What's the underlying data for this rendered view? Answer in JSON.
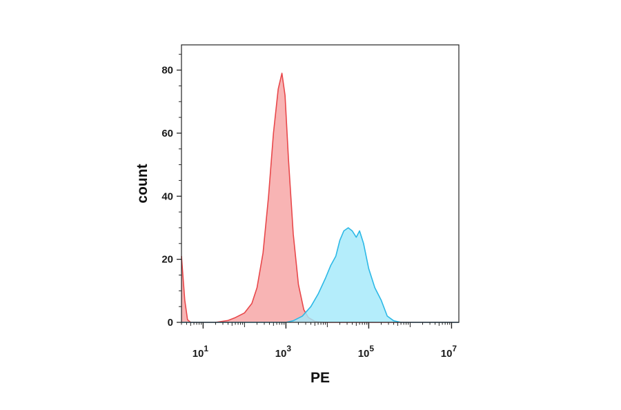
{
  "chart_data": {
    "type": "area",
    "xlabel": "PE",
    "ylabel": "count",
    "x_scale": "log",
    "xlim": [
      3,
      15000000.0
    ],
    "ylim": [
      0,
      88
    ],
    "grid": false,
    "legend": "none",
    "y_ticks": [
      0,
      20,
      40,
      60,
      80
    ],
    "x_ticks": [
      {
        "value": 10,
        "base": "10",
        "exp": "1"
      },
      {
        "value": 1000,
        "base": "10",
        "exp": "3"
      },
      {
        "value": 100000,
        "base": "10",
        "exp": "5"
      },
      {
        "value": 10000000,
        "base": "10",
        "exp": "7"
      }
    ],
    "series": [
      {
        "color": "#e8474a",
        "fill": "#f7a3a3",
        "points": [
          [
            3,
            21
          ],
          [
            3.6,
            7
          ],
          [
            4.2,
            0.8
          ],
          [
            5,
            0
          ],
          [
            20,
            0
          ],
          [
            40,
            0.6
          ],
          [
            60,
            1.5
          ],
          [
            100,
            3
          ],
          [
            150,
            6
          ],
          [
            200,
            11
          ],
          [
            280,
            22
          ],
          [
            380,
            40
          ],
          [
            500,
            60
          ],
          [
            650,
            74
          ],
          [
            800,
            79
          ],
          [
            950,
            72
          ],
          [
            1150,
            52
          ],
          [
            1500,
            28
          ],
          [
            2000,
            12
          ],
          [
            2700,
            4
          ],
          [
            3500,
            1.5
          ],
          [
            5000,
            0.3
          ],
          [
            8000,
            0
          ],
          [
            15000000,
            0
          ]
        ]
      },
      {
        "color": "#2bb8e6",
        "fill": "#a3e9fa",
        "points": [
          [
            3,
            0
          ],
          [
            1000,
            0
          ],
          [
            1500,
            0.5
          ],
          [
            2500,
            2
          ],
          [
            4000,
            5
          ],
          [
            6000,
            9
          ],
          [
            9000,
            14
          ],
          [
            12000,
            18
          ],
          [
            16000,
            21
          ],
          [
            20000,
            26
          ],
          [
            25000,
            29
          ],
          [
            32000,
            30
          ],
          [
            40000,
            29
          ],
          [
            50000,
            27
          ],
          [
            60000,
            29
          ],
          [
            75000,
            25
          ],
          [
            100000,
            17
          ],
          [
            140000,
            11
          ],
          [
            200000,
            7
          ],
          [
            280000,
            2
          ],
          [
            400000,
            0.5
          ],
          [
            600000,
            0
          ],
          [
            15000000,
            0
          ]
        ]
      }
    ]
  }
}
